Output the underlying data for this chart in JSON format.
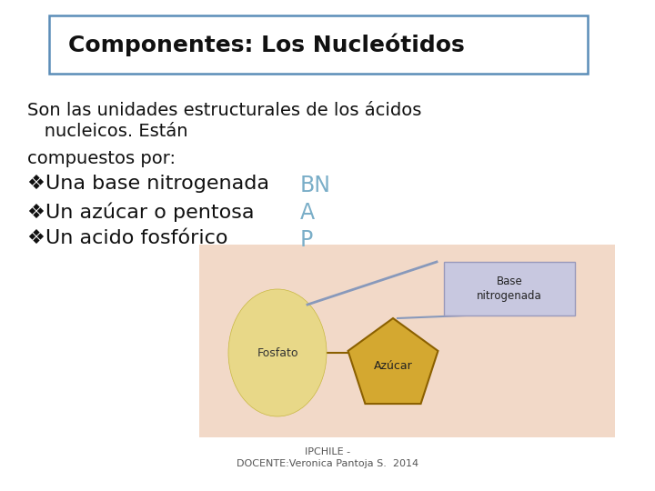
{
  "title": "Componentes: Los Nucleótidos",
  "bg_color": "#ffffff",
  "title_box_edge_color": "#5b8db8",
  "title_fontsize": 18,
  "body_lines": [
    "Son las unidades estructurales de los ácidos",
    "   nucleicos. Están",
    "compuestos por:"
  ],
  "bullet_lines": [
    "❖Una base nitrogenada",
    "❖Un azúcar o pentosa",
    "❖Un acido fosfórico"
  ],
  "bullet_labels": [
    "BN",
    "A",
    "P"
  ],
  "bullet_label_color": "#7aaec8",
  "body_fontsize": 14,
  "footer_line1": "IPCHILE -",
  "footer_line2": "DOCENTE:Veronica Pantoja S.  2014",
  "footer_fontsize": 8,
  "diagram_bg": "#f2d9c8",
  "diagram_sphere_color": "#e8d888",
  "diagram_sphere_edge": "#c8b840",
  "diagram_pentagon_color": "#d4a830",
  "diagram_pentagon_edge": "#8B6000",
  "diagram_label_box_color": "#c8c8e0",
  "diagram_label_box_edge": "#9999bb",
  "diagram_line_color": "#8899bb",
  "diagram_connect_color": "#8B6000"
}
